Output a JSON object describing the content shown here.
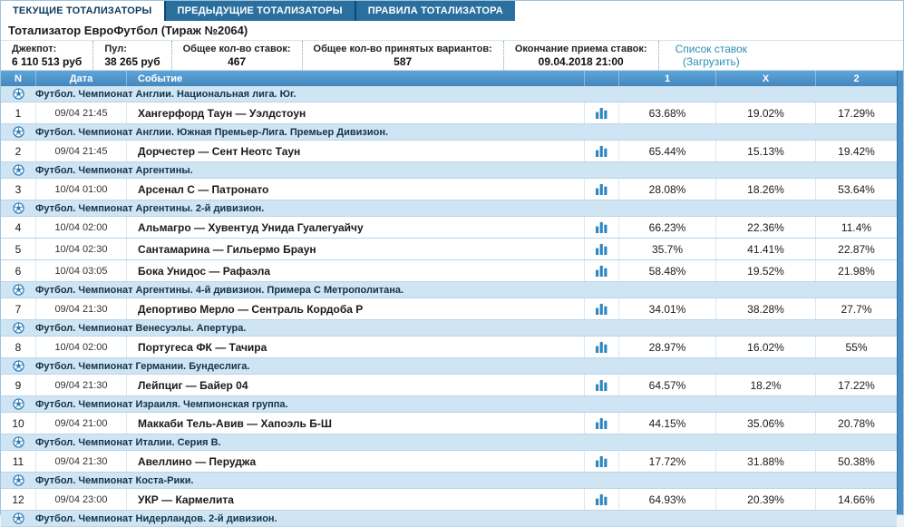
{
  "tabs": [
    {
      "name": "tab-current-totalizators",
      "label": "ТЕКУЩИЕ ТОТАЛИЗАТОРЫ",
      "active": true
    },
    {
      "name": "tab-previous-totalizators",
      "label": "ПРЕДЫДУЩИЕ ТОТАЛИЗАТОРЫ",
      "active": false
    },
    {
      "name": "tab-totalizator-rules",
      "label": "ПРАВИЛА ТОТАЛИЗАТОРА",
      "active": false
    }
  ],
  "title": "Тотализатор ЕвроФутбол (Тираж №2064)",
  "info": [
    {
      "name": "jackpot",
      "label": "Джекпот:",
      "value": "6 110 513 руб"
    },
    {
      "name": "pool",
      "label": "Пул:",
      "value": "38 265 руб"
    },
    {
      "name": "total-bets",
      "label": "Общее кол-во ставок:",
      "value": "467"
    },
    {
      "name": "total-variants",
      "label": "Общее кол-во принятых вариантов:",
      "value": "587"
    },
    {
      "name": "bets-deadline",
      "label": "Окончание приема ставок:",
      "value": "09.04.2018 21:00"
    }
  ],
  "bets_link": {
    "line1": "Список ставок",
    "line2": "(Загрузить)"
  },
  "table": {
    "headers": {
      "n": "N",
      "date": "Дата",
      "event": "Событие",
      "p1": "1",
      "px": "X",
      "p2": "2"
    },
    "rows": [
      {
        "type": "category",
        "label": "Футбол. Чемпионат Англии. Национальная лига. Юг."
      },
      {
        "type": "match",
        "n": "1",
        "date": "09/04 21:45",
        "event": "Хангерфорд Таун — Уэлдстоун",
        "p1": "63.68%",
        "px": "19.02%",
        "p2": "17.29%"
      },
      {
        "type": "category",
        "label": "Футбол. Чемпионат Англии. Южная Премьер-Лига. Премьер Дивизион."
      },
      {
        "type": "match",
        "n": "2",
        "date": "09/04 21:45",
        "event": "Дорчестер — Сент Неотс Таун",
        "p1": "65.44%",
        "px": "15.13%",
        "p2": "19.42%"
      },
      {
        "type": "category",
        "label": "Футбол. Чемпионат Аргентины."
      },
      {
        "type": "match",
        "n": "3",
        "date": "10/04 01:00",
        "event": "Арсенал С — Патронато",
        "p1": "28.08%",
        "px": "18.26%",
        "p2": "53.64%"
      },
      {
        "type": "category",
        "label": "Футбол. Чемпионат Аргентины. 2-й дивизион."
      },
      {
        "type": "match",
        "n": "4",
        "date": "10/04 02:00",
        "event": "Альмагро — Хувентуд Унида Гуалегуайчу",
        "p1": "66.23%",
        "px": "22.36%",
        "p2": "11.4%"
      },
      {
        "type": "match",
        "n": "5",
        "date": "10/04 02:30",
        "event": "Сантамарина — Гильермо Браун",
        "p1": "35.7%",
        "px": "41.41%",
        "p2": "22.87%"
      },
      {
        "type": "match",
        "n": "6",
        "date": "10/04 03:05",
        "event": "Бока Унидос — Рафаэла",
        "p1": "58.48%",
        "px": "19.52%",
        "p2": "21.98%"
      },
      {
        "type": "category",
        "label": "Футбол. Чемпионат Аргентины. 4-й дивизион. Примера С Метрополитана."
      },
      {
        "type": "match",
        "n": "7",
        "date": "09/04 21:30",
        "event": "Депортиво Мерло — Сентраль Кордоба Р",
        "p1": "34.01%",
        "px": "38.28%",
        "p2": "27.7%"
      },
      {
        "type": "category",
        "label": "Футбол. Чемпионат Венесуэлы. Апертура."
      },
      {
        "type": "match",
        "n": "8",
        "date": "10/04 02:00",
        "event": "Португеса ФК — Тачира",
        "p1": "28.97%",
        "px": "16.02%",
        "p2": "55%"
      },
      {
        "type": "category",
        "label": "Футбол. Чемпионат Германии. Бундеслига."
      },
      {
        "type": "match",
        "n": "9",
        "date": "09/04 21:30",
        "event": "Лейпциг — Байер 04",
        "p1": "64.57%",
        "px": "18.2%",
        "p2": "17.22%"
      },
      {
        "type": "category",
        "label": "Футбол. Чемпионат Израиля. Чемпионская группа."
      },
      {
        "type": "match",
        "n": "10",
        "date": "09/04 21:00",
        "event": "Маккаби Тель-Авив — Хапоэль Б-Ш",
        "p1": "44.15%",
        "px": "35.06%",
        "p2": "20.78%"
      },
      {
        "type": "category",
        "label": "Футбол. Чемпионат Италии. Серия В."
      },
      {
        "type": "match",
        "n": "11",
        "date": "09/04 21:30",
        "event": "Авеллино — Перуджа",
        "p1": "17.72%",
        "px": "31.88%",
        "p2": "50.38%"
      },
      {
        "type": "category",
        "label": "Футбол. Чемпионат Коста-Рики."
      },
      {
        "type": "match",
        "n": "12",
        "date": "09/04 23:00",
        "event": "УКР — Кармелита",
        "p1": "64.93%",
        "px": "20.39%",
        "p2": "14.66%"
      },
      {
        "type": "category",
        "label": "Футбол. Чемпионат Нидерландов. 2-й дивизион."
      }
    ]
  },
  "colors": {
    "tab_bar": "#0c4a72",
    "inactive_tab": "#2a6f9e",
    "active_tab_text": "#0d3a5c",
    "table_header_blue": "#4a8fc4",
    "category_row_bg": "#cfe5f3",
    "row_border": "#b9d5ea",
    "link_teal": "#2d8fb5",
    "icon_blue": "#2e86c1",
    "scrollbar_blue": "#4a90c7"
  }
}
